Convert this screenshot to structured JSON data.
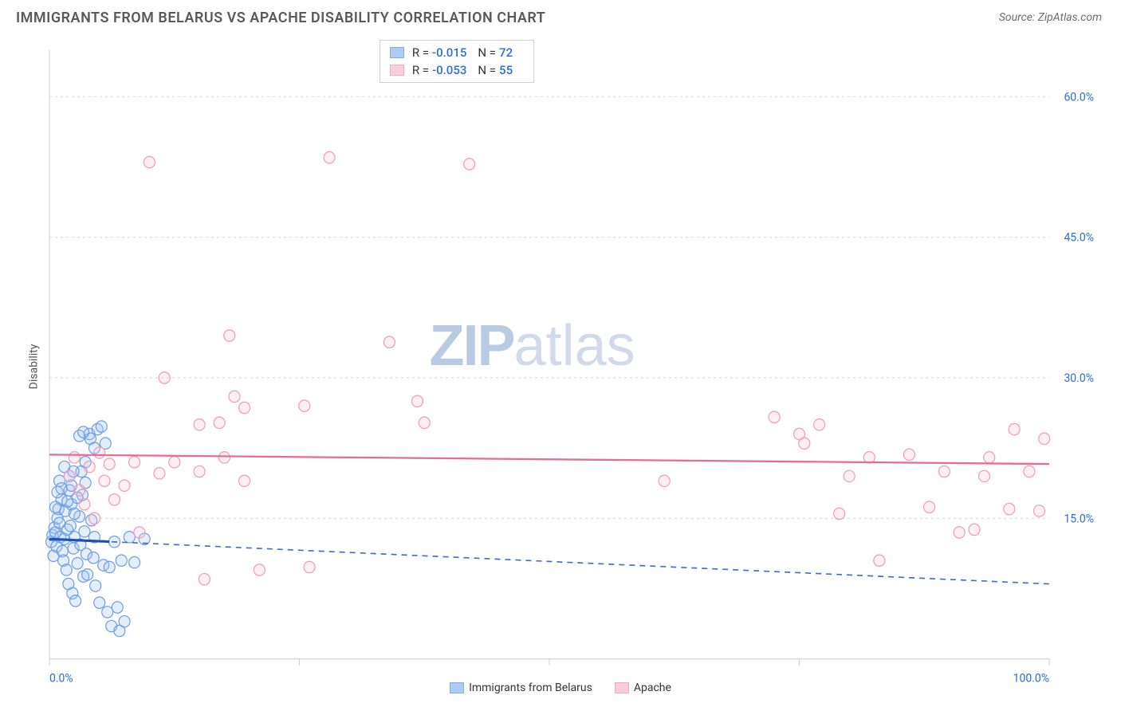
{
  "title": "IMMIGRANTS FROM BELARUS VS APACHE DISABILITY CORRELATION CHART",
  "source_label": "Source: ",
  "source_name": "ZipAtlas.com",
  "ylabel": "Disability",
  "watermark": {
    "zip": "ZIP",
    "atlas": "atlas"
  },
  "chart": {
    "type": "scatter",
    "xlim": [
      0,
      100
    ],
    "ylim": [
      0,
      65
    ],
    "x_ticks": [
      0,
      25,
      50,
      75,
      100
    ],
    "x_tick_labels": [
      "0.0%",
      "",
      "",
      "",
      "100.0%"
    ],
    "y_ticks": [
      15,
      30,
      45,
      60
    ],
    "y_tick_labels": [
      "15.0%",
      "30.0%",
      "45.0%",
      "60.0%"
    ],
    "grid_color": "#d8d8d8",
    "axis_color": "#cfcfcf",
    "background": "#ffffff",
    "label_color": "#2a6fd6",
    "marker_radius": 7,
    "marker_stroke_width": 1.2,
    "marker_fill_opacity": 0.28
  },
  "series": [
    {
      "key": "belarus",
      "name": "Immigrants from Belarus",
      "color_stroke": "#6b9ee8",
      "color_fill": "#9fc2f2",
      "trend": {
        "y1": 12.8,
        "y2": 8.0,
        "dashed": true,
        "width": 1.6,
        "color": "#3d6fc2"
      },
      "points": [
        [
          0.2,
          12.5
        ],
        [
          0.3,
          13.2
        ],
        [
          0.4,
          11.0
        ],
        [
          0.5,
          14.0
        ],
        [
          0.6,
          13.5
        ],
        [
          0.7,
          12.0
        ],
        [
          0.8,
          15.0
        ],
        [
          0.9,
          16.0
        ],
        [
          1.0,
          14.5
        ],
        [
          1.1,
          13.0
        ],
        [
          1.2,
          17.0
        ],
        [
          1.3,
          11.5
        ],
        [
          1.4,
          10.5
        ],
        [
          1.5,
          12.8
        ],
        [
          1.6,
          15.8
        ],
        [
          1.7,
          9.5
        ],
        [
          1.8,
          13.8
        ],
        [
          1.9,
          8.0
        ],
        [
          2.0,
          18.0
        ],
        [
          2.1,
          14.2
        ],
        [
          2.2,
          16.5
        ],
        [
          2.3,
          7.0
        ],
        [
          2.4,
          11.8
        ],
        [
          2.5,
          13.0
        ],
        [
          2.6,
          6.2
        ],
        [
          2.8,
          10.2
        ],
        [
          3.0,
          15.2
        ],
        [
          3.1,
          12.2
        ],
        [
          3.2,
          20.0
        ],
        [
          3.3,
          17.5
        ],
        [
          3.4,
          8.8
        ],
        [
          3.5,
          13.6
        ],
        [
          3.6,
          21.0
        ],
        [
          3.7,
          11.2
        ],
        [
          3.8,
          9.0
        ],
        [
          4.0,
          24.0
        ],
        [
          4.1,
          23.5
        ],
        [
          4.2,
          14.8
        ],
        [
          4.4,
          10.8
        ],
        [
          4.5,
          22.5
        ],
        [
          4.6,
          7.8
        ],
        [
          4.8,
          24.5
        ],
        [
          5.0,
          6.0
        ],
        [
          5.2,
          24.8
        ],
        [
          5.4,
          10.0
        ],
        [
          5.6,
          23.0
        ],
        [
          5.8,
          5.0
        ],
        [
          6.0,
          9.8
        ],
        [
          6.2,
          3.5
        ],
        [
          6.5,
          12.5
        ],
        [
          6.8,
          5.5
        ],
        [
          7.0,
          3.0
        ],
        [
          7.2,
          10.5
        ],
        [
          7.5,
          4.0
        ],
        [
          8.0,
          13.0
        ],
        [
          8.5,
          10.3
        ],
        [
          9.5,
          12.8
        ],
        [
          3.0,
          23.8
        ],
        [
          3.4,
          24.2
        ],
        [
          2.0,
          19.5
        ],
        [
          1.5,
          20.5
        ],
        [
          2.2,
          18.5
        ],
        [
          1.0,
          19.0
        ],
        [
          0.8,
          17.8
        ],
        [
          1.8,
          16.8
        ],
        [
          2.5,
          15.5
        ],
        [
          1.2,
          18.2
        ],
        [
          0.6,
          16.2
        ],
        [
          2.8,
          17.2
        ],
        [
          3.6,
          18.8
        ],
        [
          2.4,
          20.0
        ],
        [
          4.5,
          13.0
        ]
      ]
    },
    {
      "key": "apache",
      "name": "Apache",
      "color_stroke": "#f29bb3",
      "color_fill": "#f8c5d3",
      "trend": {
        "y1": 21.8,
        "y2": 20.8,
        "dashed": false,
        "width": 2.2,
        "color": "#e76b93"
      },
      "points": [
        [
          10.0,
          53.0
        ],
        [
          28.0,
          53.5
        ],
        [
          42.0,
          52.8
        ],
        [
          18.0,
          34.5
        ],
        [
          34.0,
          33.8
        ],
        [
          11.5,
          30.0
        ],
        [
          18.5,
          28.0
        ],
        [
          15.0,
          25.0
        ],
        [
          17.0,
          25.2
        ],
        [
          25.5,
          27.0
        ],
        [
          36.8,
          27.5
        ],
        [
          37.5,
          25.2
        ],
        [
          19.5,
          26.8
        ],
        [
          4.0,
          20.5
        ],
        [
          5.5,
          19.0
        ],
        [
          6.0,
          20.8
        ],
        [
          7.5,
          18.5
        ],
        [
          8.5,
          21.0
        ],
        [
          11.0,
          19.8
        ],
        [
          12.5,
          21.0
        ],
        [
          15.0,
          20.0
        ],
        [
          17.5,
          21.5
        ],
        [
          19.5,
          19.0
        ],
        [
          21.0,
          9.5
        ],
        [
          26.0,
          9.8
        ],
        [
          15.5,
          8.5
        ],
        [
          3.5,
          16.5
        ],
        [
          4.5,
          15.0
        ],
        [
          6.5,
          17.0
        ],
        [
          9.0,
          13.5
        ],
        [
          2.5,
          21.5
        ],
        [
          2.0,
          19.5
        ],
        [
          3.0,
          18.0
        ],
        [
          5.0,
          22.0
        ],
        [
          61.5,
          19.0
        ],
        [
          72.5,
          25.8
        ],
        [
          75.0,
          24.0
        ],
        [
          75.5,
          23.0
        ],
        [
          77.0,
          25.0
        ],
        [
          79.0,
          15.5
        ],
        [
          80.0,
          19.5
        ],
        [
          82.0,
          21.5
        ],
        [
          83.0,
          10.5
        ],
        [
          86.0,
          21.8
        ],
        [
          88.0,
          16.2
        ],
        [
          89.5,
          20.0
        ],
        [
          91.0,
          13.5
        ],
        [
          92.5,
          13.8
        ],
        [
          93.5,
          19.5
        ],
        [
          94.0,
          21.5
        ],
        [
          96.5,
          24.5
        ],
        [
          96.0,
          16.0
        ],
        [
          98.0,
          20.0
        ],
        [
          99.0,
          15.8
        ],
        [
          99.5,
          23.5
        ]
      ]
    }
  ],
  "legend_box": {
    "rows": [
      {
        "series": "belarus",
        "r_label": "R =",
        "r_value": "-0.015",
        "n_label": "N =",
        "n_value": "72"
      },
      {
        "series": "apache",
        "r_label": "R =",
        "r_value": "-0.053",
        "n_label": "N =",
        "n_value": "55"
      }
    ]
  },
  "bottom_legend": [
    {
      "series": "belarus",
      "label": "Immigrants from Belarus"
    },
    {
      "series": "apache",
      "label": "Apache"
    }
  ]
}
